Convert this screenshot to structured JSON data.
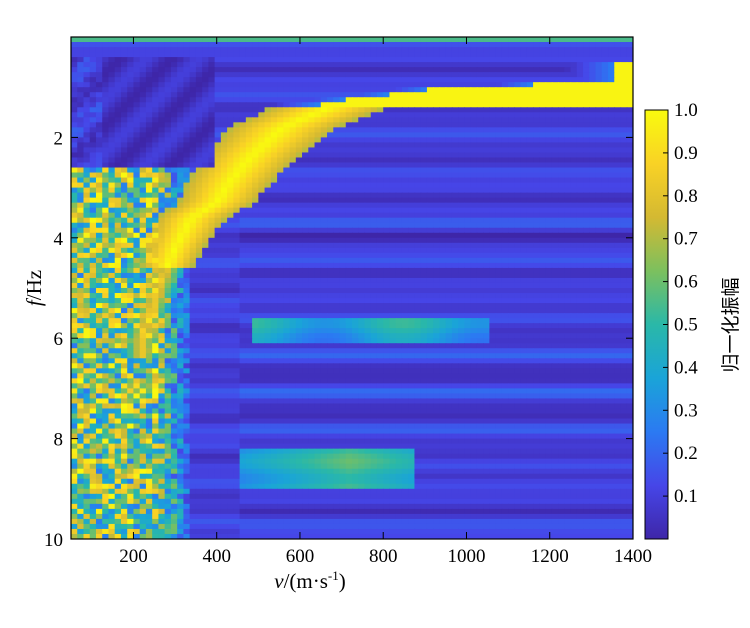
{
  "chart_data": {
    "type": "heatmap",
    "title": "",
    "xlabel_italic": "v",
    "xlabel_rest": "/(m·s",
    "xlabel_sup": "-1",
    "xlabel_close": ")",
    "ylabel_italic": "f",
    "ylabel_rest": "/Hz",
    "x_range": [
      50,
      1400
    ],
    "y_range": [
      0,
      10
    ],
    "y_inverted": true,
    "x_ticks": [
      "200",
      "400",
      "600",
      "800",
      "1000",
      "1200",
      "1400"
    ],
    "x_tick_values": [
      200,
      400,
      600,
      800,
      1000,
      1200,
      1400
    ],
    "y_ticks": [
      "2",
      "4",
      "6",
      "8",
      "10"
    ],
    "y_tick_values": [
      2,
      4,
      6,
      8,
      10
    ],
    "colorbar": {
      "label": "归一化振幅",
      "range": [
        0,
        1
      ],
      "ticks": [
        "1.0",
        "0.9",
        "0.8",
        "0.7",
        "0.6",
        "0.5",
        "0.4",
        "0.3",
        "0.2",
        "0.1"
      ],
      "tick_values": [
        1.0,
        0.9,
        0.8,
        0.7,
        0.6,
        0.5,
        0.4,
        0.3,
        0.2,
        0.1
      ],
      "colormap": [
        "#3e26a8",
        "#4646e8",
        "#2b7af2",
        "#1aa4d8",
        "#2ab8a8",
        "#7cc05e",
        "#d4b932",
        "#f9d225",
        "#f9fb0e"
      ]
    },
    "ridges": [
      {
        "name": "fundamental",
        "points": [
          [
            1400,
            0.9
          ],
          [
            1000,
            1.0
          ],
          [
            700,
            1.3
          ],
          [
            560,
            1.8
          ],
          [
            480,
            2.4
          ],
          [
            430,
            2.9
          ],
          [
            400,
            3.3
          ],
          [
            340,
            3.6
          ],
          [
            300,
            4.2
          ],
          [
            260,
            5.0
          ],
          [
            220,
            6.0
          ]
        ],
        "amp": 1.0
      },
      {
        "name": "mode-2",
        "points": [
          [
            1000,
            5.9
          ],
          [
            800,
            5.8
          ],
          [
            650,
            5.7
          ],
          [
            500,
            5.6
          ]
        ],
        "amp": 0.45
      },
      {
        "name": "mode-3",
        "points": [
          [
            850,
            8.5
          ],
          [
            720,
            8.6
          ],
          [
            600,
            8.7
          ]
        ],
        "amp": 0.55
      }
    ]
  }
}
